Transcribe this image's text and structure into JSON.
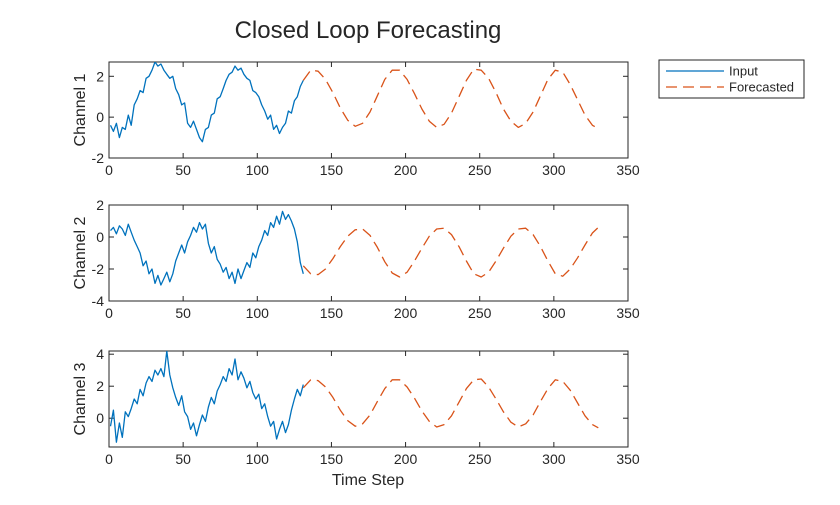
{
  "figure": {
    "title": "Closed Loop Forecasting",
    "xlabel": "Time Step"
  },
  "colors": {
    "input": "#0072BD",
    "forecast": "#D95319",
    "axis": "#262626"
  },
  "legend": {
    "placement": "outside-top-right",
    "entries": [
      "Input",
      "Forecasted"
    ]
  },
  "chart_data": [
    {
      "type": "line",
      "ylabel": "Channel 1",
      "xlim": [
        0,
        350
      ],
      "ylim": [
        -2,
        2.7
      ],
      "xticks": [
        0,
        50,
        100,
        150,
        200,
        250,
        300,
        350
      ],
      "yticks": [
        -2,
        0,
        2
      ],
      "series": [
        {
          "name": "Input",
          "style": "solid",
          "x": [
            1,
            3,
            5,
            7,
            9,
            11,
            13,
            15,
            17,
            19,
            21,
            23,
            25,
            27,
            29,
            31,
            33,
            35,
            37,
            39,
            41,
            43,
            45,
            47,
            49,
            51,
            53,
            55,
            57,
            59,
            61,
            63,
            65,
            67,
            69,
            71,
            73,
            75,
            77,
            79,
            81,
            83,
            85,
            87,
            89,
            91,
            93,
            95,
            97,
            99,
            101,
            103,
            105,
            107,
            109,
            111,
            113,
            115,
            117,
            119,
            121,
            123,
            125,
            127,
            129,
            131
          ],
          "values": [
            -0.4,
            -0.7,
            -0.3,
            -1.0,
            -0.5,
            -0.6,
            0.1,
            -0.4,
            0.6,
            0.9,
            1.3,
            1.2,
            1.9,
            2.0,
            2.3,
            2.7,
            2.5,
            2.6,
            2.3,
            2.1,
            1.9,
            2.0,
            1.4,
            1.1,
            0.6,
            0.7,
            -0.3,
            -0.5,
            -0.2,
            -0.6,
            -1.0,
            -1.2,
            -0.6,
            -0.5,
            0.1,
            0.2,
            0.9,
            1.0,
            1.4,
            1.8,
            2.1,
            2.2,
            2.5,
            2.3,
            2.4,
            2.1,
            1.9,
            1.8,
            1.3,
            1.2,
            1.0,
            0.6,
            0.3,
            -0.1,
            0.1,
            -0.6,
            -0.4,
            -0.8,
            -0.5,
            -0.3,
            0.3,
            0.2,
            0.8,
            1.0,
            1.5,
            1.8
          ]
        },
        {
          "name": "Forecasted",
          "style": "dashed",
          "x": [
            131,
            136,
            141,
            146,
            151,
            156,
            161,
            166,
            171,
            176,
            181,
            186,
            191,
            196,
            201,
            206,
            211,
            216,
            221,
            226,
            231,
            236,
            241,
            246,
            251,
            256,
            261,
            266,
            271,
            276,
            281,
            286,
            291,
            296,
            301,
            306,
            311,
            316,
            321,
            326,
            330
          ],
          "values": [
            1.8,
            2.3,
            2.25,
            1.85,
            1.2,
            0.45,
            -0.15,
            -0.45,
            -0.3,
            0.25,
            1.05,
            1.85,
            2.3,
            2.3,
            1.85,
            1.15,
            0.4,
            -0.2,
            -0.5,
            -0.35,
            0.2,
            1.0,
            1.8,
            2.35,
            2.3,
            1.9,
            1.2,
            0.4,
            -0.2,
            -0.5,
            -0.3,
            0.25,
            1.05,
            1.85,
            2.3,
            2.2,
            1.6,
            0.85,
            0.1,
            -0.4,
            -0.55
          ]
        }
      ]
    },
    {
      "type": "line",
      "ylabel": "Channel 2",
      "xlim": [
        0,
        350
      ],
      "ylim": [
        -4,
        2
      ],
      "xticks": [
        0,
        50,
        100,
        150,
        200,
        250,
        300,
        350
      ],
      "yticks": [
        -4,
        -2,
        0,
        2
      ],
      "series": [
        {
          "name": "Input",
          "style": "solid",
          "x": [
            1,
            3,
            5,
            7,
            9,
            11,
            13,
            15,
            17,
            19,
            21,
            23,
            25,
            27,
            29,
            31,
            33,
            35,
            37,
            39,
            41,
            43,
            45,
            47,
            49,
            51,
            53,
            55,
            57,
            59,
            61,
            63,
            65,
            67,
            69,
            71,
            73,
            75,
            77,
            79,
            81,
            83,
            85,
            87,
            89,
            91,
            93,
            95,
            97,
            99,
            101,
            103,
            105,
            107,
            109,
            111,
            113,
            115,
            117,
            119,
            121,
            123,
            125,
            127,
            129,
            131
          ],
          "values": [
            0.4,
            0.6,
            0.2,
            0.7,
            0.5,
            0.1,
            0.8,
            0.3,
            -0.2,
            -0.6,
            -1.0,
            -1.8,
            -1.5,
            -2.3,
            -2.0,
            -2.9,
            -2.4,
            -3.0,
            -2.6,
            -2.2,
            -2.8,
            -2.3,
            -1.5,
            -1.0,
            -0.5,
            -1.0,
            -0.3,
            0.1,
            0.6,
            0.3,
            0.9,
            0.5,
            0.8,
            -0.4,
            -1.0,
            -0.6,
            -1.4,
            -1.7,
            -2.2,
            -1.9,
            -2.6,
            -2.2,
            -2.9,
            -2.0,
            -2.6,
            -2.1,
            -1.6,
            -1.9,
            -1.0,
            -1.3,
            -0.6,
            -0.2,
            0.4,
            0.1,
            0.9,
            0.6,
            1.3,
            0.8,
            1.6,
            1.1,
            1.4,
            1.0,
            0.5,
            -0.3,
            -1.6,
            -2.3
          ]
        },
        {
          "name": "Forecasted",
          "style": "dashed",
          "x": [
            131,
            136,
            141,
            146,
            151,
            156,
            161,
            166,
            171,
            176,
            181,
            186,
            191,
            196,
            201,
            206,
            211,
            216,
            221,
            226,
            231,
            236,
            241,
            246,
            251,
            256,
            261,
            266,
            271,
            276,
            281,
            286,
            291,
            296,
            301,
            306,
            311,
            316,
            321,
            326,
            330
          ],
          "values": [
            -1.8,
            -2.3,
            -2.35,
            -2.0,
            -1.35,
            -0.6,
            0.05,
            0.45,
            0.5,
            0.1,
            -0.65,
            -1.55,
            -2.25,
            -2.5,
            -2.2,
            -1.5,
            -0.7,
            0.05,
            0.5,
            0.55,
            0.15,
            -0.6,
            -1.5,
            -2.3,
            -2.5,
            -2.2,
            -1.5,
            -0.7,
            0.05,
            0.5,
            0.55,
            0.15,
            -0.6,
            -1.5,
            -2.3,
            -2.45,
            -2.0,
            -1.3,
            -0.5,
            0.25,
            0.6
          ]
        }
      ]
    },
    {
      "type": "line",
      "ylabel": "Channel 3",
      "xlim": [
        0,
        350
      ],
      "ylim": [
        -1.8,
        4.2
      ],
      "xticks": [
        0,
        50,
        100,
        150,
        200,
        250,
        300,
        350
      ],
      "yticks": [
        0,
        2,
        4
      ],
      "series": [
        {
          "name": "Input",
          "style": "solid",
          "x": [
            1,
            3,
            5,
            7,
            9,
            11,
            13,
            15,
            17,
            19,
            21,
            23,
            25,
            27,
            29,
            31,
            33,
            35,
            37,
            39,
            41,
            43,
            45,
            47,
            49,
            51,
            53,
            55,
            57,
            59,
            61,
            63,
            65,
            67,
            69,
            71,
            73,
            75,
            77,
            79,
            81,
            83,
            85,
            87,
            89,
            91,
            93,
            95,
            97,
            99,
            101,
            103,
            105,
            107,
            109,
            111,
            113,
            115,
            117,
            119,
            121,
            123,
            125,
            127,
            129,
            131
          ],
          "values": [
            -0.5,
            0.5,
            -1.5,
            -0.3,
            -1.2,
            0.4,
            0.1,
            0.6,
            1.2,
            0.9,
            1.8,
            1.4,
            2.2,
            2.6,
            2.3,
            3.0,
            2.7,
            3.1,
            2.6,
            4.2,
            2.7,
            1.9,
            1.3,
            0.8,
            1.4,
            0.4,
            0.1,
            -0.7,
            -0.3,
            -1.1,
            -0.4,
            0.2,
            -0.2,
            0.7,
            1.3,
            0.9,
            1.7,
            2.1,
            2.6,
            2.3,
            3.1,
            2.7,
            3.7,
            2.4,
            2.9,
            2.5,
            1.9,
            2.3,
            1.6,
            1.2,
            1.5,
            0.6,
            0.9,
            0.1,
            -0.5,
            -0.2,
            -1.3,
            -0.7,
            -0.2,
            -0.9,
            -0.4,
            0.5,
            1.2,
            1.8,
            1.4,
            2.1
          ]
        },
        {
          "name": "Forecasted",
          "style": "dashed",
          "x": [
            131,
            136,
            141,
            146,
            151,
            156,
            161,
            166,
            171,
            176,
            181,
            186,
            191,
            196,
            201,
            206,
            211,
            216,
            221,
            226,
            231,
            236,
            241,
            246,
            251,
            256,
            261,
            266,
            271,
            276,
            281,
            286,
            291,
            296,
            301,
            306,
            311,
            316,
            321,
            326,
            330
          ],
          "values": [
            1.9,
            2.4,
            2.35,
            1.95,
            1.3,
            0.5,
            -0.15,
            -0.5,
            -0.35,
            0.2,
            1.05,
            1.85,
            2.4,
            2.4,
            1.95,
            1.25,
            0.45,
            -0.2,
            -0.55,
            -0.4,
            0.15,
            1.0,
            1.85,
            2.4,
            2.45,
            1.95,
            1.2,
            0.4,
            -0.25,
            -0.55,
            -0.35,
            0.2,
            1.05,
            1.85,
            2.4,
            2.3,
            1.75,
            0.95,
            0.15,
            -0.4,
            -0.6
          ]
        }
      ]
    }
  ]
}
